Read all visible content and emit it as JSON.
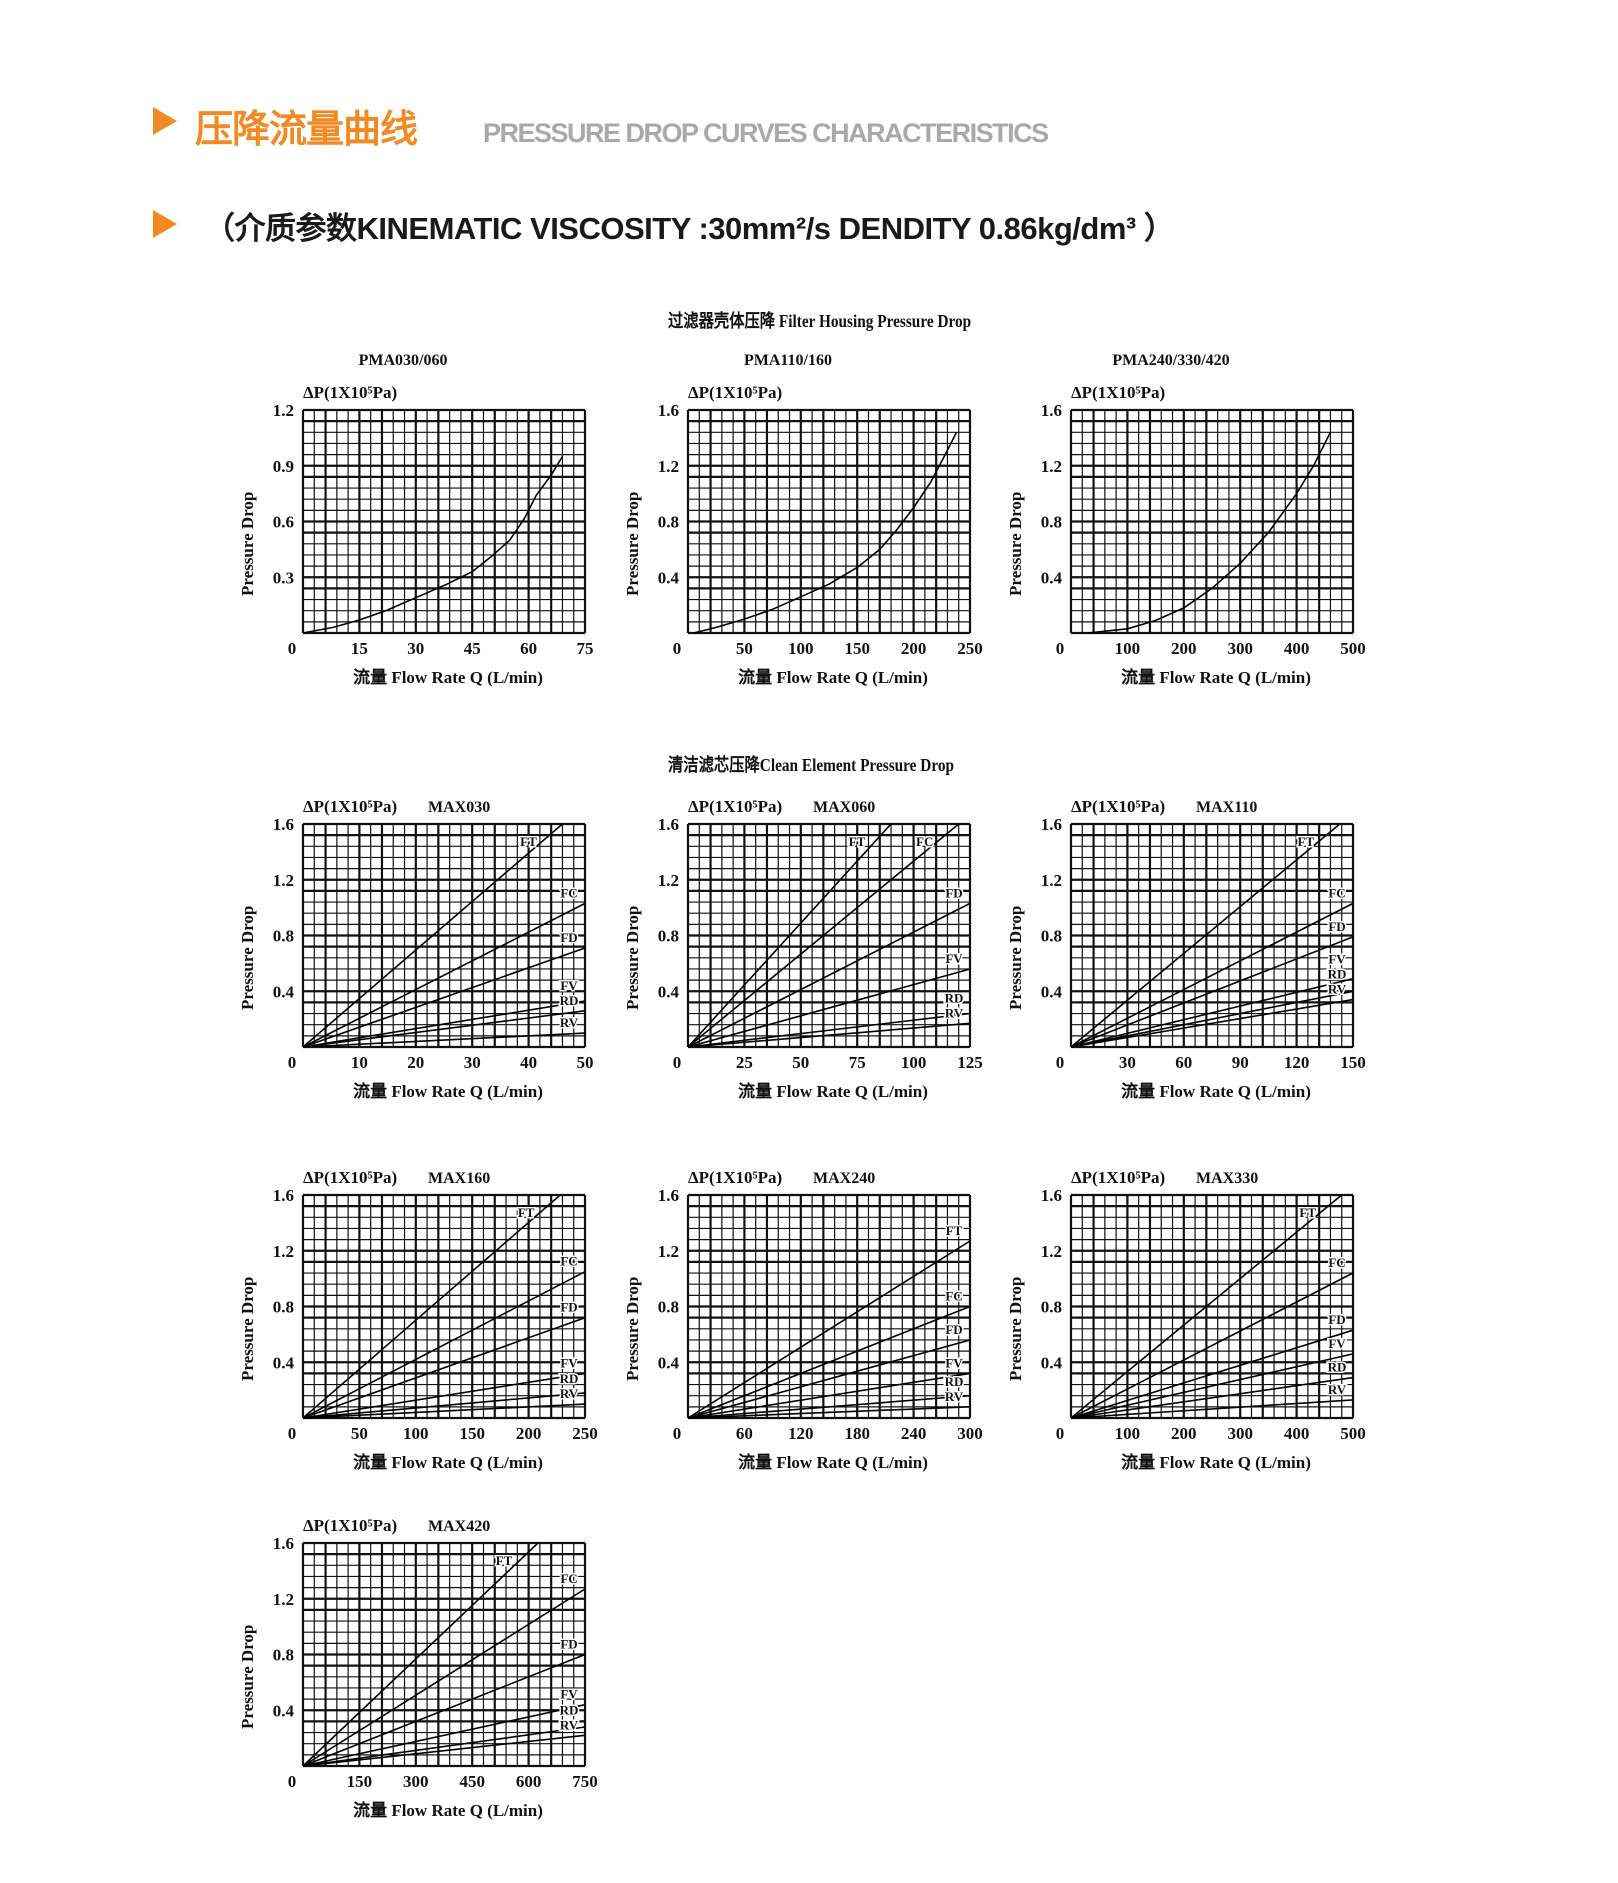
{
  "header": {
    "title_cn": "压降流量曲线",
    "title_en": "PRESSURE DROP CURVES CHARACTERISTICS",
    "medium": "（介质参数KINEMATIC VISCOSITY :30mm²/s DENDITY 0.86kg/dm³ ）",
    "accent_color": "#f08a24",
    "subtitle_color": "#a9a9ab"
  },
  "sections": {
    "housing": "过滤器壳体压降 Filter Housing Pressure Drop",
    "element": "清洁滤芯压降Clean Element Pressure Drop"
  },
  "chart_data": [
    {
      "type": "line",
      "title": "PMA030/060",
      "unit_label": "ΔP(1X10⁵Pa)",
      "ylabel": "Pressure Drop",
      "xlabel": "流量 Flow Rate  Q (L/min)",
      "xlim": [
        0,
        75
      ],
      "ylim": [
        0,
        1.2
      ],
      "xticks": [
        0,
        15,
        30,
        45,
        60,
        75
      ],
      "yticks": [
        0.3,
        0.6,
        0.9,
        1.2
      ],
      "grid": true,
      "series": [
        {
          "points": [
            [
              0,
              0
            ],
            [
              8,
              0.03
            ],
            [
              15,
              0.07
            ],
            [
              22,
              0.12
            ],
            [
              30,
              0.19
            ],
            [
              38,
              0.26
            ],
            [
              45,
              0.33
            ],
            [
              50,
              0.41
            ],
            [
              55,
              0.5
            ],
            [
              59,
              0.62
            ],
            [
              62,
              0.74
            ],
            [
              66,
              0.85
            ],
            [
              69,
              0.95
            ]
          ]
        }
      ]
    },
    {
      "type": "line",
      "title": "PMA110/160",
      "unit_label": "ΔP(1X10⁵Pa)",
      "ylabel": "Pressure Drop",
      "xlabel": "流量 Flow Rate  Q (L/min)",
      "xlim": [
        0,
        250
      ],
      "ylim": [
        0,
        1.6
      ],
      "xticks": [
        0,
        50,
        100,
        150,
        200,
        250
      ],
      "yticks": [
        0.4,
        0.8,
        1.2,
        1.6
      ],
      "grid": true,
      "series": [
        {
          "points": [
            [
              5,
              0
            ],
            [
              25,
              0.04
            ],
            [
              50,
              0.1
            ],
            [
              75,
              0.17
            ],
            [
              100,
              0.26
            ],
            [
              125,
              0.35
            ],
            [
              150,
              0.47
            ],
            [
              170,
              0.6
            ],
            [
              185,
              0.74
            ],
            [
              200,
              0.9
            ],
            [
              215,
              1.08
            ],
            [
              228,
              1.28
            ],
            [
              238,
              1.44
            ]
          ]
        }
      ]
    },
    {
      "type": "line",
      "title": "PMA240/330/420",
      "unit_label": "ΔP(1X10⁵Pa)",
      "ylabel": "Pressure Drop",
      "xlabel": "流量 Flow Rate  Q (L/min)",
      "xlim": [
        0,
        500
      ],
      "ylim": [
        0,
        1.6
      ],
      "xticks": [
        0,
        100,
        200,
        300,
        400,
        500
      ],
      "yticks": [
        0.4,
        0.8,
        1.2,
        1.6
      ],
      "grid": true,
      "series": [
        {
          "points": [
            [
              30,
              0
            ],
            [
              100,
              0.03
            ],
            [
              150,
              0.09
            ],
            [
              200,
              0.18
            ],
            [
              250,
              0.32
            ],
            [
              300,
              0.5
            ],
            [
              350,
              0.72
            ],
            [
              400,
              1.0
            ],
            [
              430,
              1.2
            ],
            [
              460,
              1.44
            ]
          ]
        }
      ]
    },
    {
      "type": "line",
      "title": "MAX030",
      "unit_label": "ΔP(1X10⁵Pa)",
      "ylabel": "Pressure Drop",
      "xlabel": "流量 Flow Rate  Q (L/min)",
      "xlim": [
        0,
        50
      ],
      "ylim": [
        0,
        1.6
      ],
      "xticks": [
        0,
        10,
        20,
        30,
        40,
        50
      ],
      "yticks": [
        0.4,
        0.8,
        1.2,
        1.6
      ],
      "grid": true,
      "series": [
        {
          "name": "FT",
          "points": [
            [
              0,
              0
            ],
            [
              46,
              1.6
            ]
          ]
        },
        {
          "name": "FC",
          "points": [
            [
              0,
              0
            ],
            [
              50,
              1.03
            ]
          ]
        },
        {
          "name": "FD",
          "points": [
            [
              0,
              0
            ],
            [
              50,
              0.71
            ]
          ]
        },
        {
          "name": "FV",
          "points": [
            [
              0,
              0
            ],
            [
              50,
              0.33
            ]
          ]
        },
        {
          "name": "RD",
          "points": [
            [
              0,
              0
            ],
            [
              50,
              0.26
            ]
          ]
        },
        {
          "name": "RV",
          "points": [
            [
              0,
              0
            ],
            [
              50,
              0.1
            ]
          ]
        }
      ]
    },
    {
      "type": "line",
      "title": "MAX060",
      "unit_label": "ΔP(1X10⁵Pa)",
      "ylabel": "Pressure Drop",
      "xlabel": "流量 Flow Rate  Q (L/min)",
      "xlim": [
        0,
        125
      ],
      "ylim": [
        0,
        1.6
      ],
      "xticks": [
        0,
        25,
        50,
        75,
        100,
        125
      ],
      "yticks": [
        0.4,
        0.8,
        1.2,
        1.6
      ],
      "grid": true,
      "series": [
        {
          "name": "FT",
          "points": [
            [
              0,
              0
            ],
            [
              90,
              1.6
            ]
          ]
        },
        {
          "name": "FC",
          "points": [
            [
              0,
              0
            ],
            [
              120,
              1.6
            ]
          ]
        },
        {
          "name": "FD",
          "points": [
            [
              0,
              0
            ],
            [
              125,
              1.03
            ]
          ]
        },
        {
          "name": "FV",
          "points": [
            [
              0,
              0
            ],
            [
              125,
              0.56
            ]
          ]
        },
        {
          "name": "RD",
          "points": [
            [
              0,
              0
            ],
            [
              125,
              0.24
            ]
          ]
        },
        {
          "name": "RV",
          "points": [
            [
              0,
              0
            ],
            [
              125,
              0.17
            ]
          ]
        }
      ]
    },
    {
      "type": "line",
      "title": "MAX110",
      "unit_label": "ΔP(1X10⁵Pa)",
      "ylabel": "Pressure Drop",
      "xlabel": "流量 Flow Rate  Q (L/min)",
      "xlim": [
        0,
        150
      ],
      "ylim": [
        0,
        1.6
      ],
      "xticks": [
        0,
        30,
        60,
        90,
        120,
        150
      ],
      "yticks": [
        0.4,
        0.8,
        1.2,
        1.6
      ],
      "grid": true,
      "series": [
        {
          "name": "FT",
          "points": [
            [
              0,
              0
            ],
            [
              143,
              1.6
            ]
          ]
        },
        {
          "name": "FC",
          "points": [
            [
              0,
              0
            ],
            [
              150,
              1.03
            ]
          ]
        },
        {
          "name": "FD",
          "points": [
            [
              0,
              0
            ],
            [
              150,
              0.79
            ]
          ]
        },
        {
          "name": "FV",
          "points": [
            [
              0,
              0
            ],
            [
              150,
              0.49
            ]
          ]
        },
        {
          "name": "RD",
          "points": [
            [
              0,
              0
            ],
            [
              150,
              0.4
            ]
          ]
        },
        {
          "name": "RV",
          "points": [
            [
              0,
              0
            ],
            [
              150,
              0.34
            ]
          ]
        }
      ]
    },
    {
      "type": "line",
      "title": "MAX160",
      "unit_label": "ΔP(1X10⁵Pa)",
      "ylabel": "Pressure Drop",
      "xlabel": "流量 Flow Rate  Q (L/min)",
      "xlim": [
        0,
        250
      ],
      "ylim": [
        0,
        1.6
      ],
      "xticks": [
        0,
        50,
        100,
        150,
        200,
        250
      ],
      "yticks": [
        0.4,
        0.8,
        1.2,
        1.6
      ],
      "grid": true,
      "series": [
        {
          "name": "FT",
          "points": [
            [
              0,
              0
            ],
            [
              228,
              1.6
            ]
          ]
        },
        {
          "name": "FC",
          "points": [
            [
              0,
              0
            ],
            [
              250,
              1.05
            ]
          ]
        },
        {
          "name": "FD",
          "points": [
            [
              0,
              0
            ],
            [
              250,
              0.72
            ]
          ]
        },
        {
          "name": "FV",
          "points": [
            [
              0,
              0
            ],
            [
              250,
              0.32
            ]
          ]
        },
        {
          "name": "RD",
          "points": [
            [
              0,
              0
            ],
            [
              250,
              0.18
            ]
          ]
        },
        {
          "name": "RV",
          "points": [
            [
              0,
              0
            ],
            [
              250,
              0.1
            ]
          ]
        }
      ]
    },
    {
      "type": "line",
      "title": "MAX240",
      "unit_label": "ΔP(1X10⁵Pa)",
      "ylabel": "Pressure Drop",
      "xlabel": "流量 Flow Rate  Q (L/min)",
      "xlim": [
        0,
        300
      ],
      "ylim": [
        0,
        1.6
      ],
      "xticks": [
        0,
        60,
        120,
        180,
        240,
        300
      ],
      "yticks": [
        0.4,
        0.8,
        1.2,
        1.6
      ],
      "grid": true,
      "series": [
        {
          "name": "FT",
          "points": [
            [
              0,
              0
            ],
            [
              300,
              1.27
            ]
          ]
        },
        {
          "name": "FC",
          "points": [
            [
              0,
              0
            ],
            [
              300,
              0.8
            ]
          ]
        },
        {
          "name": "FD",
          "points": [
            [
              0,
              0
            ],
            [
              300,
              0.56
            ]
          ]
        },
        {
          "name": "FV",
          "points": [
            [
              0,
              0
            ],
            [
              300,
              0.32
            ]
          ]
        },
        {
          "name": "RD",
          "points": [
            [
              0,
              0
            ],
            [
              300,
              0.16
            ]
          ]
        },
        {
          "name": "RV",
          "points": [
            [
              0,
              0
            ],
            [
              300,
              0.08
            ]
          ]
        }
      ]
    },
    {
      "type": "line",
      "title": "MAX330",
      "unit_label": "ΔP(1X10⁵Pa)",
      "ylabel": "Pressure Drop",
      "xlabel": "流量 Flow Rate  Q (L/min)",
      "xlim": [
        0,
        500
      ],
      "ylim": [
        0,
        1.6
      ],
      "xticks": [
        0,
        100,
        200,
        300,
        400,
        500
      ],
      "yticks": [
        0.4,
        0.8,
        1.2,
        1.6
      ],
      "grid": true,
      "series": [
        {
          "name": "FT",
          "points": [
            [
              0,
              0
            ],
            [
              480,
              1.6
            ]
          ]
        },
        {
          "name": "FC",
          "points": [
            [
              0,
              0
            ],
            [
              500,
              1.04
            ]
          ]
        },
        {
          "name": "FD",
          "points": [
            [
              0,
              0
            ],
            [
              500,
              0.63
            ]
          ]
        },
        {
          "name": "FV",
          "points": [
            [
              0,
              0
            ],
            [
              500,
              0.46
            ]
          ]
        },
        {
          "name": "RD",
          "points": [
            [
              0,
              0
            ],
            [
              500,
              0.29
            ]
          ]
        },
        {
          "name": "RV",
          "points": [
            [
              0,
              0
            ],
            [
              500,
              0.13
            ]
          ]
        }
      ]
    },
    {
      "type": "line",
      "title": "MAX420",
      "unit_label": "ΔP(1X10⁵Pa)",
      "ylabel": "Pressure Drop",
      "xlabel": "流量 Flow Rate  Q (L/min)",
      "xlim": [
        0,
        750
      ],
      "ylim": [
        0,
        1.6
      ],
      "xticks": [
        0,
        150,
        300,
        450,
        600,
        750
      ],
      "yticks": [
        0.4,
        0.8,
        1.2,
        1.6
      ],
      "grid": true,
      "series": [
        {
          "name": "FT",
          "points": [
            [
              0,
              0
            ],
            [
              625,
              1.6
            ]
          ]
        },
        {
          "name": "FC",
          "points": [
            [
              0,
              0
            ],
            [
              750,
              1.27
            ]
          ]
        },
        {
          "name": "FD",
          "points": [
            [
              0,
              0
            ],
            [
              750,
              0.8
            ]
          ]
        },
        {
          "name": "FV",
          "points": [
            [
              0,
              0
            ],
            [
              750,
              0.44
            ]
          ]
        },
        {
          "name": "RD",
          "points": [
            [
              0,
              0
            ],
            [
              750,
              0.28
            ]
          ]
        },
        {
          "name": "RV",
          "points": [
            [
              0,
              0
            ],
            [
              750,
              0.22
            ]
          ]
        }
      ]
    }
  ]
}
